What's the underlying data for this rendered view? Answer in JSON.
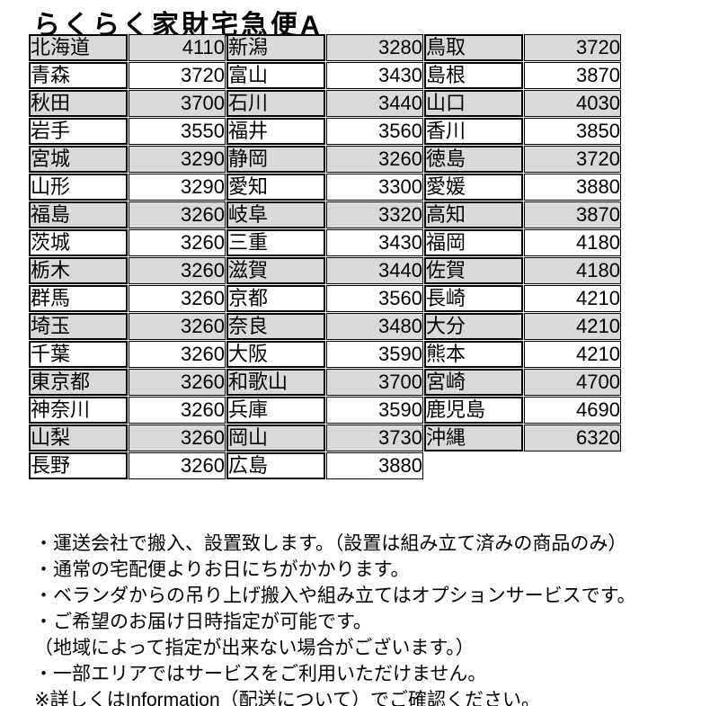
{
  "title": "らくらく家財宅急便A",
  "fee_table": {
    "columns": [
      {
        "entries": [
          {
            "prefecture": "北海道",
            "fee": "4110"
          },
          {
            "prefecture": "青森",
            "fee": "3720"
          },
          {
            "prefecture": "秋田",
            "fee": "3700"
          },
          {
            "prefecture": "岩手",
            "fee": "3550"
          },
          {
            "prefecture": "宮城",
            "fee": "3290"
          },
          {
            "prefecture": "山形",
            "fee": "3290"
          },
          {
            "prefecture": "福島",
            "fee": "3260"
          },
          {
            "prefecture": "茨城",
            "fee": "3260"
          },
          {
            "prefecture": "栃木",
            "fee": "3260"
          },
          {
            "prefecture": "群馬",
            "fee": "3260"
          },
          {
            "prefecture": "埼玉",
            "fee": "3260"
          },
          {
            "prefecture": "千葉",
            "fee": "3260"
          },
          {
            "prefecture": "東京都",
            "fee": "3260"
          },
          {
            "prefecture": "神奈川",
            "fee": "3260"
          },
          {
            "prefecture": "山梨",
            "fee": "3260"
          },
          {
            "prefecture": "長野",
            "fee": "3260"
          }
        ]
      },
      {
        "entries": [
          {
            "prefecture": "新潟",
            "fee": "3280"
          },
          {
            "prefecture": "富山",
            "fee": "3430"
          },
          {
            "prefecture": "石川",
            "fee": "3440"
          },
          {
            "prefecture": "福井",
            "fee": "3560"
          },
          {
            "prefecture": "静岡",
            "fee": "3260"
          },
          {
            "prefecture": "愛知",
            "fee": "3300"
          },
          {
            "prefecture": "岐阜",
            "fee": "3320"
          },
          {
            "prefecture": "三重",
            "fee": "3430"
          },
          {
            "prefecture": "滋賀",
            "fee": "3440"
          },
          {
            "prefecture": "京都",
            "fee": "3560"
          },
          {
            "prefecture": "奈良",
            "fee": "3480"
          },
          {
            "prefecture": "大阪",
            "fee": "3590"
          },
          {
            "prefecture": "和歌山",
            "fee": "3700"
          },
          {
            "prefecture": "兵庫",
            "fee": "3590"
          },
          {
            "prefecture": "岡山",
            "fee": "3730"
          },
          {
            "prefecture": "広島",
            "fee": "3880"
          }
        ]
      },
      {
        "entries": [
          {
            "prefecture": "鳥取",
            "fee": "3720"
          },
          {
            "prefecture": "島根",
            "fee": "3870"
          },
          {
            "prefecture": "山口",
            "fee": "4030"
          },
          {
            "prefecture": "香川",
            "fee": "3850"
          },
          {
            "prefecture": "徳島",
            "fee": "3720"
          },
          {
            "prefecture": "愛媛",
            "fee": "3880"
          },
          {
            "prefecture": "高知",
            "fee": "3870"
          },
          {
            "prefecture": "福岡",
            "fee": "4180"
          },
          {
            "prefecture": "佐賀",
            "fee": "4180"
          },
          {
            "prefecture": "長崎",
            "fee": "4210"
          },
          {
            "prefecture": "大分",
            "fee": "4210"
          },
          {
            "prefecture": "熊本",
            "fee": "4210"
          },
          {
            "prefecture": "宮崎",
            "fee": "4700"
          },
          {
            "prefecture": "鹿児島",
            "fee": "4690"
          },
          {
            "prefecture": "沖縄",
            "fee": "6320"
          }
        ]
      }
    ]
  },
  "colors": {
    "row_shade": "#d9d9d9",
    "border": "#000000",
    "text": "#000000"
  },
  "notes": [
    "・運送会社で搬入、設置致します。（設置は組み立て済みの商品のみ）",
    "・通常の宅配便よりお日にちがかかります。",
    "・ベランダからの吊り上げ搬入や組み立てはオプションサービスです。",
    "・ご希望のお届け日時指定が可能です。",
    "（地域によって指定が出来ない場合がございます。）",
    "・一部エリアではサービスをご利用いただけません。",
    "※詳しくはInformation（配送について）でご確認ください。"
  ]
}
